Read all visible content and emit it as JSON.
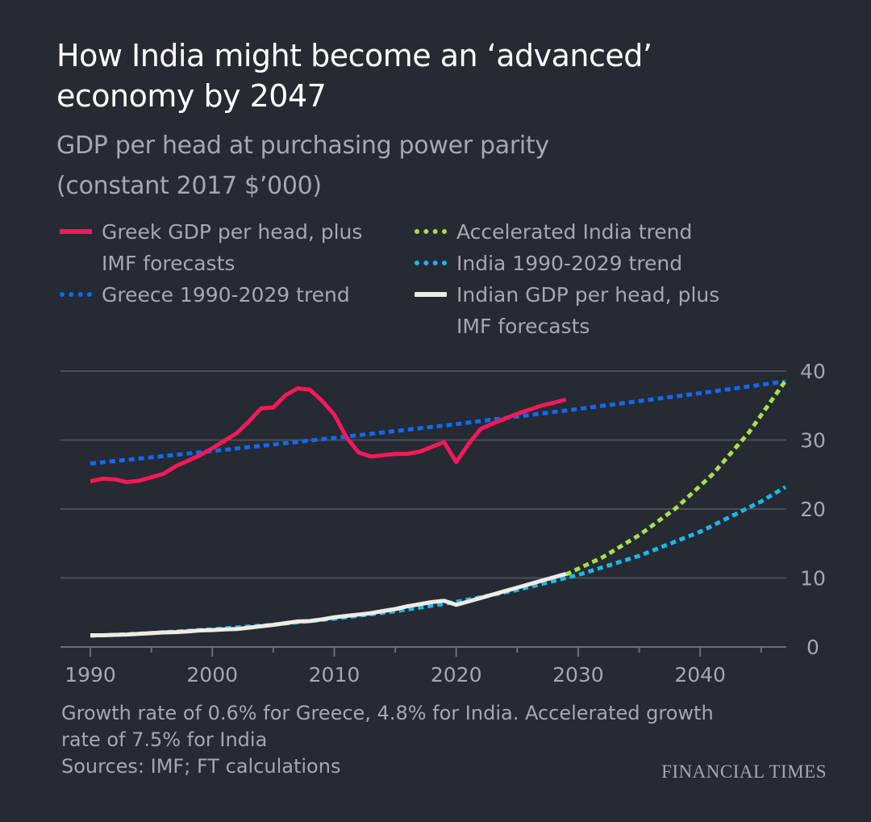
{
  "colors": {
    "background": "#262a33",
    "greece": "#f5185a",
    "greece_trend": "#0f6af0",
    "accelerated": "#a8e04a",
    "india_trend": "#1ab8e8",
    "india": "#f0ebe3",
    "grid": "#4a4e57",
    "text": "#a6a8ad"
  },
  "footer": {
    "note_line1": "Growth rate of 0.6% for Greece, 4.8% for India. Accelerated growth",
    "note_line2": "rate of 7.5% for India",
    "sources": "Sources: IMF; FT calculations",
    "brand": "FINANCIAL TIMES"
  },
  "chart_data": {
    "type": "line",
    "title": "How India might become an ‘advanced’ economy by 2047",
    "title_line1": "How India might become an ‘advanced’",
    "title_line2": "economy by 2047",
    "subtitle_line1": "GDP per head at purchasing power parity",
    "subtitle_line2": "(constant 2017 $’000)",
    "xlim": [
      1990,
      2047
    ],
    "ylim": [
      0,
      40
    ],
    "x_ticks": [
      1990,
      2000,
      2010,
      2020,
      2030,
      2040
    ],
    "x_tick_labels": [
      "1990",
      "2000",
      "2010",
      "2020",
      "2030",
      "2040"
    ],
    "y_ticks": [
      0,
      10,
      20,
      30,
      40
    ],
    "y_tick_labels": [
      "0",
      "10",
      "20",
      "30",
      "40"
    ],
    "y_axis_side": "right",
    "grid": true,
    "legend_placement": "top",
    "series": [
      {
        "name": "Greek GDP per head, plus IMF forecasts",
        "legend_line1": "Greek GDP per head, plus",
        "legend_line2": "IMF forecasts",
        "style": "solid",
        "color_key": "greece",
        "x": [
          1990,
          1991,
          1992,
          1993,
          1994,
          1995,
          1996,
          1997,
          1998,
          1999,
          2000,
          2001,
          2002,
          2003,
          2004,
          2005,
          2006,
          2007,
          2008,
          2009,
          2010,
          2011,
          2012,
          2013,
          2014,
          2015,
          2016,
          2017,
          2018,
          2019,
          2020,
          2021,
          2022,
          2023,
          2024,
          2025,
          2026,
          2027,
          2028,
          2029
        ],
        "y": [
          24.0,
          24.4,
          24.3,
          23.9,
          24.1,
          24.6,
          25.1,
          26.2,
          27.0,
          27.8,
          28.8,
          29.9,
          31.0,
          32.7,
          34.6,
          34.7,
          36.5,
          37.5,
          37.3,
          35.7,
          33.7,
          30.4,
          28.2,
          27.6,
          27.8,
          28.0,
          28.0,
          28.3,
          29.0,
          29.7,
          26.8,
          29.4,
          31.6,
          32.4,
          33.1,
          33.8,
          34.4,
          35.0,
          35.4,
          35.9
        ]
      },
      {
        "name": "Greece 1990-2029 trend",
        "legend_line1": "Greece 1990-2029 trend",
        "style": "dotted",
        "color_key": "greece_trend",
        "x": [
          1990,
          2000,
          2010,
          2020,
          2030,
          2040,
          2047
        ],
        "y": [
          26.6,
          28.4,
          30.3,
          32.3,
          34.5,
          36.8,
          38.5
        ]
      },
      {
        "name": "Accelerated India trend",
        "legend_line1": "Accelerated India trend",
        "style": "dotted",
        "color_key": "accelerated",
        "x": [
          2029,
          2032,
          2035,
          2038,
          2041,
          2044,
          2047
        ],
        "y": [
          10.5,
          13.0,
          16.2,
          20.1,
          25.0,
          31.1,
          38.6
        ]
      },
      {
        "name": "India 1990-2029 trend",
        "legend_line1": "India 1990-2029 trend",
        "style": "dotted",
        "color_key": "india_trend",
        "x": [
          1990,
          1995,
          2000,
          2005,
          2010,
          2015,
          2020,
          2025,
          2030,
          2035,
          2040,
          2045,
          2047
        ],
        "y": [
          1.6,
          2.02,
          2.56,
          3.23,
          4.09,
          5.17,
          6.53,
          8.26,
          10.44,
          13.2,
          16.7,
          21.1,
          23.2
        ]
      },
      {
        "name": "Indian GDP per head, plus IMF forecasts",
        "legend_line1": "Indian GDP per head, plus",
        "legend_line2": "IMF forecasts",
        "style": "solid",
        "color_key": "india",
        "x": [
          1990,
          1991,
          1992,
          1993,
          1994,
          1995,
          1996,
          1997,
          1998,
          1999,
          2000,
          2001,
          2002,
          2003,
          2004,
          2005,
          2006,
          2007,
          2008,
          2009,
          2010,
          2011,
          2012,
          2013,
          2014,
          2015,
          2016,
          2017,
          2018,
          2019,
          2020,
          2021,
          2022,
          2023,
          2024,
          2025,
          2026,
          2027,
          2028,
          2029
        ],
        "y": [
          1.7,
          1.7,
          1.75,
          1.8,
          1.9,
          2.0,
          2.1,
          2.15,
          2.25,
          2.4,
          2.45,
          2.55,
          2.6,
          2.8,
          3.0,
          3.2,
          3.45,
          3.7,
          3.75,
          4.0,
          4.3,
          4.5,
          4.7,
          4.9,
          5.2,
          5.5,
          5.9,
          6.2,
          6.5,
          6.7,
          6.1,
          6.6,
          7.1,
          7.6,
          8.1,
          8.6,
          9.1,
          9.6,
          10.1,
          10.6
        ]
      }
    ]
  }
}
